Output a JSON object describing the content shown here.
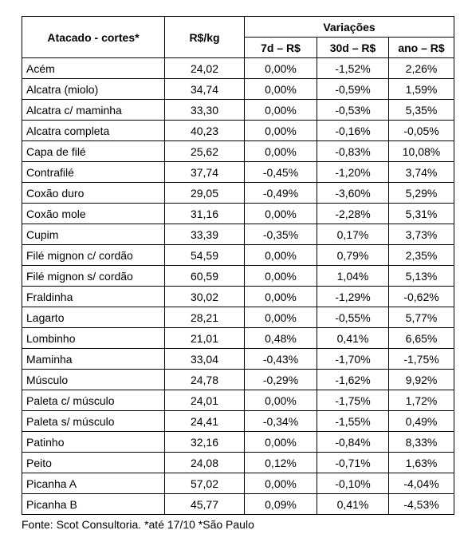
{
  "table": {
    "header": {
      "cut": "Atacado - cortes*",
      "price": "R$/kg",
      "group": "Variações",
      "d7": "7d – R$",
      "d30": "30d – R$",
      "year": "ano – R$"
    },
    "rows": [
      {
        "cut": "Acém",
        "price": "24,02",
        "d7": "0,00%",
        "d30": "-1,52%",
        "year": "2,26%"
      },
      {
        "cut": "Alcatra (miolo)",
        "price": "34,74",
        "d7": "0,00%",
        "d30": "-0,59%",
        "year": "1,59%"
      },
      {
        "cut": "Alcatra c/ maminha",
        "price": "33,30",
        "d7": "0,00%",
        "d30": "-0,53%",
        "year": "5,35%"
      },
      {
        "cut": "Alcatra completa",
        "price": "40,23",
        "d7": "0,00%",
        "d30": "-0,16%",
        "year": "-0,05%"
      },
      {
        "cut": "Capa de filé",
        "price": "25,62",
        "d7": "0,00%",
        "d30": "-0,83%",
        "year": "10,08%"
      },
      {
        "cut": "Contrafilé",
        "price": "37,74",
        "d7": "-0,45%",
        "d30": "-1,20%",
        "year": "3,74%"
      },
      {
        "cut": "Coxão duro",
        "price": "29,05",
        "d7": "-0,49%",
        "d30": "-3,60%",
        "year": "5,29%"
      },
      {
        "cut": "Coxão mole",
        "price": "31,16",
        "d7": "0,00%",
        "d30": "-2,28%",
        "year": "5,31%"
      },
      {
        "cut": "Cupim",
        "price": "33,39",
        "d7": "-0,35%",
        "d30": "0,17%",
        "year": "3,73%"
      },
      {
        "cut": "Filé mignon c/ cordão",
        "price": "54,59",
        "d7": "0,00%",
        "d30": "0,79%",
        "year": "2,35%"
      },
      {
        "cut": "Filé mignon s/ cordão",
        "price": "60,59",
        "d7": "0,00%",
        "d30": "1,04%",
        "year": "5,13%"
      },
      {
        "cut": "Fraldinha",
        "price": "30,02",
        "d7": "0,00%",
        "d30": "-1,29%",
        "year": "-0,62%"
      },
      {
        "cut": "Lagarto",
        "price": "28,21",
        "d7": "0,00%",
        "d30": "-0,55%",
        "year": "5,77%"
      },
      {
        "cut": "Lombinho",
        "price": "21,01",
        "d7": "0,48%",
        "d30": "0,41%",
        "year": "6,65%"
      },
      {
        "cut": "Maminha",
        "price": "33,04",
        "d7": "-0,43%",
        "d30": "-1,70%",
        "year": "-1,75%"
      },
      {
        "cut": "Músculo",
        "price": "24,78",
        "d7": "-0,29%",
        "d30": "-1,62%",
        "year": "9,92%"
      },
      {
        "cut": "Paleta c/ músculo",
        "price": "24,01",
        "d7": "0,00%",
        "d30": "-1,75%",
        "year": "1,72%"
      },
      {
        "cut": "Paleta s/ músculo",
        "price": "24,41",
        "d7": "-0,34%",
        "d30": "-1,55%",
        "year": "0,49%"
      },
      {
        "cut": "Patinho",
        "price": "32,16",
        "d7": "0,00%",
        "d30": "-0,84%",
        "year": "8,33%"
      },
      {
        "cut": "Peito",
        "price": "24,08",
        "d7": "0,12%",
        "d30": "-0,71%",
        "year": "1,63%"
      },
      {
        "cut": "Picanha A",
        "price": "57,02",
        "d7": "0,00%",
        "d30": "-0,10%",
        "year": "-4,04%"
      },
      {
        "cut": "Picanha B",
        "price": "45,77",
        "d7": "0,09%",
        "d30": "0,41%",
        "year": "-4,53%"
      }
    ]
  },
  "footer": {
    "source": "Fonte: Scot Consultoria. *até 17/10 *São Paulo"
  }
}
